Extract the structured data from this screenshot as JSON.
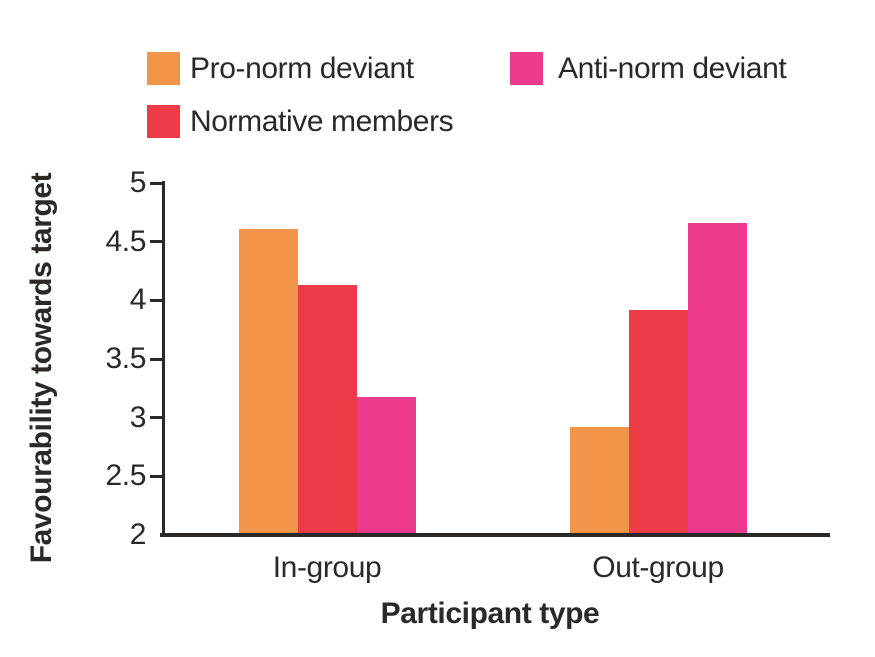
{
  "page": {
    "background": "#ffffff",
    "text_color": "#2b2828"
  },
  "chart_data": {
    "type": "bar",
    "title": "",
    "xlabel": "Participant type",
    "ylabel": "Favourability towards target",
    "categories": [
      "In-group",
      "Out-group"
    ],
    "series": [
      {
        "name": "Pro-norm deviant",
        "color": "#F2944A",
        "values": [
          4.61,
          2.92
        ]
      },
      {
        "name": "Normative members",
        "color": "#ED3C47",
        "values": [
          4.13,
          3.92
        ]
      },
      {
        "name": "Anti-norm deviant",
        "color": "#ED3A8C",
        "values": [
          3.18,
          4.66
        ]
      }
    ],
    "ylim": [
      2,
      5
    ],
    "yticks": [
      2,
      2.5,
      3,
      3.5,
      4,
      4.5,
      5
    ],
    "grid": false,
    "legend_position": "top",
    "legend_rows": [
      [
        "Pro-norm deviant",
        "Anti-norm deviant"
      ],
      [
        "Normative members"
      ]
    ]
  }
}
